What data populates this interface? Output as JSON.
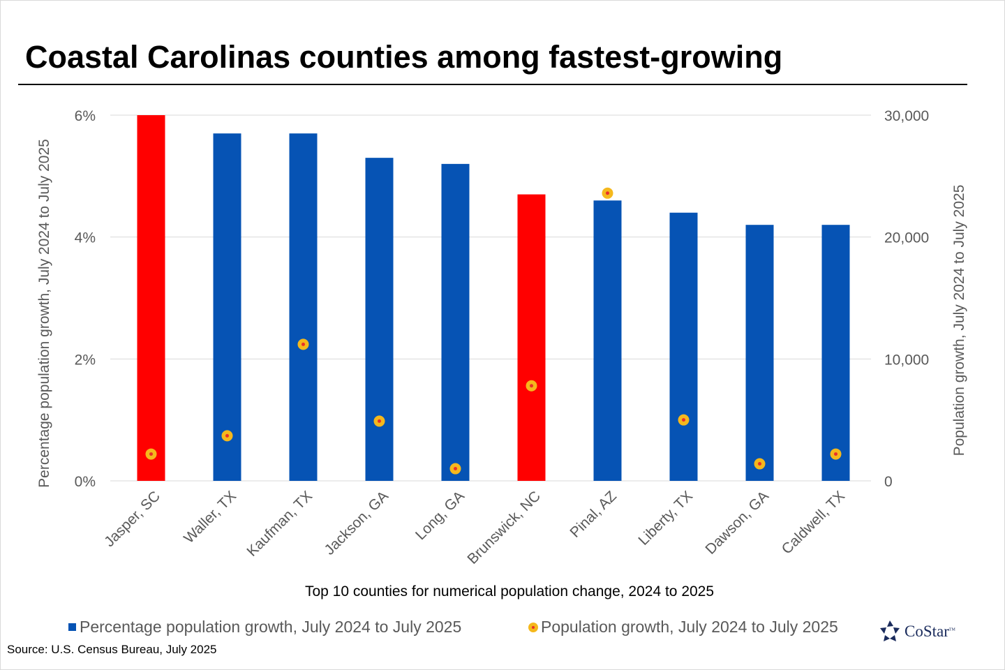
{
  "chart_data": {
    "type": "bar",
    "title": "Coastal Carolinas counties among fastest-growing",
    "xlabel": "Top 10 counties for numerical population change, 2024 to 2025",
    "ylabel_left": "Percentage population growth, July 2024 to July 2025",
    "ylabel_right": "Population growth, July 2024 to July 2025",
    "categories": [
      "Jasper, SC",
      "Waller, TX",
      "Kaufman, TX",
      "Jackson, GA",
      "Long, GA",
      "Brunswick, NC",
      "Pinal, AZ",
      "Liberty, TX",
      "Dawson, GA",
      "Caldwell, TX"
    ],
    "highlighted": [
      "Jasper, SC",
      "Brunswick, NC"
    ],
    "left_axis": {
      "ylim": [
        0,
        6
      ],
      "ticks": [
        0,
        2,
        4,
        6
      ],
      "tick_labels": [
        "0%",
        "2%",
        "4%",
        "6%"
      ]
    },
    "right_axis": {
      "ylim": [
        0,
        30000
      ],
      "ticks": [
        0,
        10000,
        20000,
        30000
      ],
      "tick_labels": [
        "0",
        "10,000",
        "20,000",
        "30,000"
      ]
    },
    "series": [
      {
        "name": "Percentage population growth, July 2024 to July 2025",
        "type": "bar",
        "axis": "left",
        "values": [
          6.0,
          5.7,
          5.7,
          5.3,
          5.2,
          4.7,
          4.6,
          4.4,
          4.2,
          4.2
        ]
      },
      {
        "name": "Population growth, July 2024 to July 2025",
        "type": "scatter",
        "axis": "right",
        "values": [
          2200,
          3700,
          11200,
          4900,
          1000,
          7800,
          23600,
          5000,
          1400,
          2200
        ]
      }
    ],
    "grid": true,
    "legend": "bottom"
  },
  "colors": {
    "bar": "#0653b4",
    "highlight": "#ff0000",
    "dot_fill": "#f5b81c",
    "dot_center": "#e8302a",
    "grid": "#d9d9d9",
    "axis_text": "#595959"
  },
  "source": "Source: U.S. Census Bureau, July 2025",
  "logo": {
    "text": "CoStar",
    "tm": "TM",
    "icon": "costar-star-icon"
  }
}
